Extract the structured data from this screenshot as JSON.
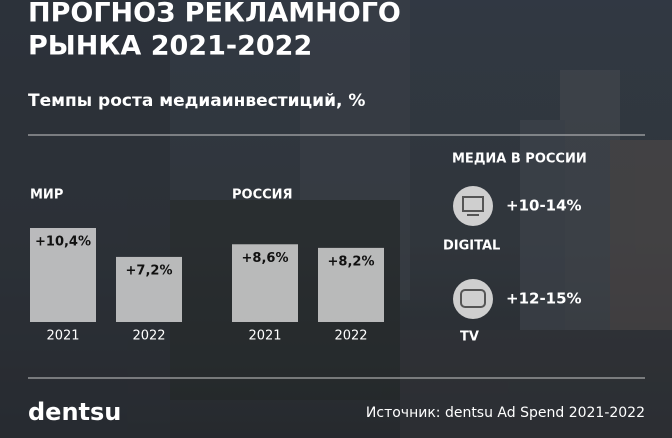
{
  "chart_data": {
    "type": "bar",
    "title": [
      "ПРОГНОЗ РЕКЛАМНОГО",
      "РЫНКА 2021-2022"
    ],
    "subtitle": "Темпы роста медиаинвестиций, %",
    "categories": [
      "2021",
      "2022"
    ],
    "series": [
      {
        "name": "МИР",
        "color": "#d9d9d9",
        "values": [
          10.4,
          7.2
        ],
        "value_labels": [
          "+10,4%",
          "+7,2%"
        ]
      },
      {
        "name": "РОССИЯ",
        "color": "#d9d9d9",
        "values": [
          8.6,
          8.2
        ],
        "value_labels": [
          "+8,6%",
          "+8,2%"
        ]
      }
    ]
  },
  "media": {
    "title": "МЕДИА В РОССИИ",
    "items": [
      {
        "value": "+10-14%",
        "label": "DIGITAL"
      },
      {
        "value": "+12-15%",
        "label": "TV"
      }
    ]
  },
  "footer": {
    "logo": "dentsu",
    "source": "Источник: dentsu Ad Spend 2021-2022"
  }
}
